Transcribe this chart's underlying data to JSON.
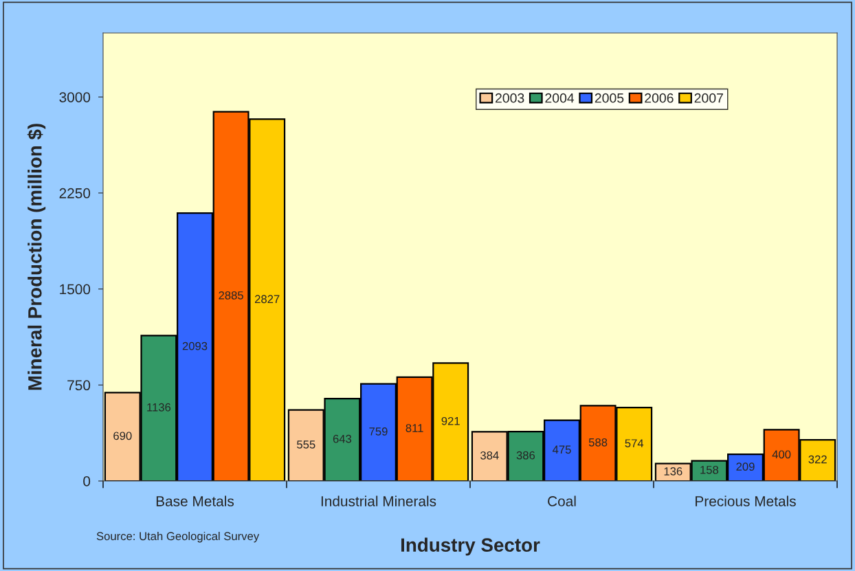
{
  "chart_data": {
    "type": "bar",
    "xlabel": "Industry Sector",
    "ylabel": "Mineral Production (million $)",
    "categories": [
      "Base Metals",
      "Industrial Minerals",
      "Coal",
      "Precious Metals"
    ],
    "series": [
      {
        "name": "2003",
        "color": "#fcca98",
        "values": [
          690,
          555,
          384,
          136
        ]
      },
      {
        "name": "2004",
        "color": "#339966",
        "values": [
          1136,
          643,
          386,
          158
        ]
      },
      {
        "name": "2005",
        "color": "#3366ff",
        "values": [
          2093,
          759,
          475,
          209
        ]
      },
      {
        "name": "2006",
        "color": "#ff6600",
        "values": [
          2885,
          811,
          588,
          400
        ]
      },
      {
        "name": "2007",
        "color": "#ffcc00",
        "values": [
          2827,
          921,
          574,
          322
        ]
      }
    ],
    "ylim": [
      0,
      3500
    ],
    "yticks": [
      0,
      750,
      1500,
      2250,
      3000
    ],
    "data_labels": true,
    "legend": "top right",
    "grid": false,
    "annotations": [
      "Source: Utah Geological Survey"
    ]
  }
}
